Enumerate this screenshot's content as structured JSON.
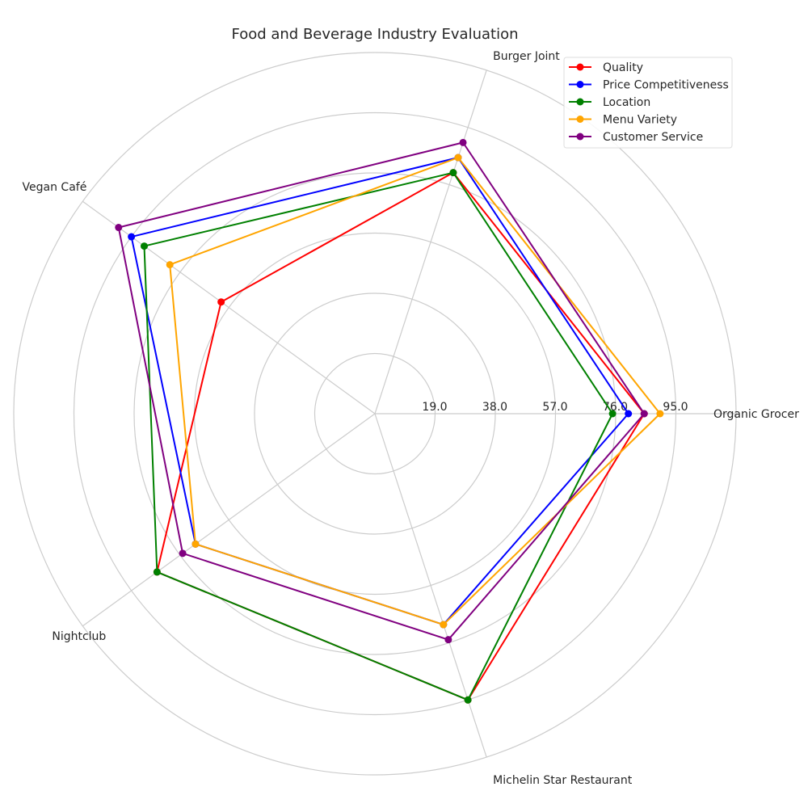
{
  "chart_data": {
    "type": "radar",
    "title": "Food and Beverage Industry Evaluation",
    "categories": [
      "Organic Grocer",
      "Burger Joint",
      "Vegan Café",
      "Nightclub",
      "Michelin Star Restaurant"
    ],
    "rlim": [
      0,
      114
    ],
    "rticks": [
      19,
      38,
      57,
      76,
      95
    ],
    "rtick_labels": [
      "19.0",
      "38.0",
      "57.0",
      "76.0",
      "95.0"
    ],
    "grid": true,
    "legend_position": "top-right",
    "series": [
      {
        "name": "Quality",
        "color": "#ff0000",
        "values": [
          85,
          80,
          60,
          85,
          95
        ]
      },
      {
        "name": "Price Competitiveness",
        "color": "#0000ff",
        "values": [
          80,
          85,
          95,
          70,
          70
        ]
      },
      {
        "name": "Location",
        "color": "#008000",
        "values": [
          75,
          80,
          90,
          85,
          95
        ]
      },
      {
        "name": "Menu Variety",
        "color": "#ffa500",
        "values": [
          90,
          85,
          80,
          70,
          70
        ]
      },
      {
        "name": "Customer Service",
        "color": "#800080",
        "values": [
          85,
          90,
          100,
          75,
          75
        ]
      }
    ]
  }
}
